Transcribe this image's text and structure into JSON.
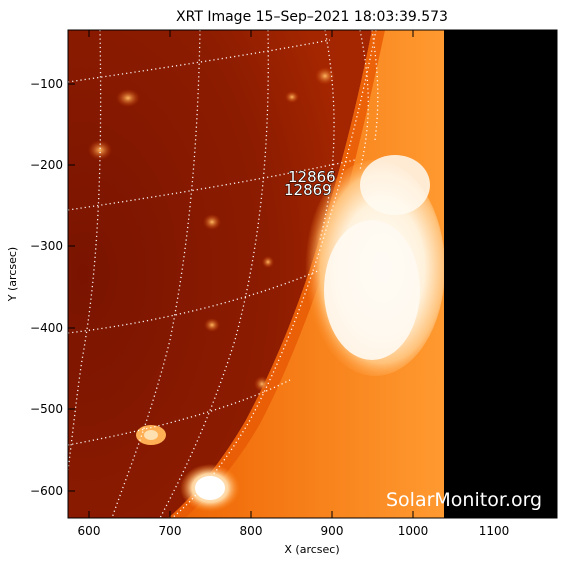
{
  "title": "XRT Image 15–Sep–2021 18:03:39.573",
  "axes": {
    "xlabel": "X (arcsec)",
    "ylabel": "Y (arcsec)",
    "x_ticks": [
      "600",
      "700",
      "800",
      "900",
      "1000",
      "1100"
    ],
    "y_ticks": [
      "−100",
      "−200",
      "−300",
      "−400",
      "−500",
      "−600"
    ]
  },
  "active_regions": [
    "12866",
    "12869"
  ],
  "watermark": "SolarMonitor.org",
  "colors": {
    "disk_dark": "#8a1a00",
    "disk_mid": "#c23a00",
    "limb_orange": "#ff7a10",
    "corona_white": "#fff6e8",
    "off_frame": "#000000"
  }
}
